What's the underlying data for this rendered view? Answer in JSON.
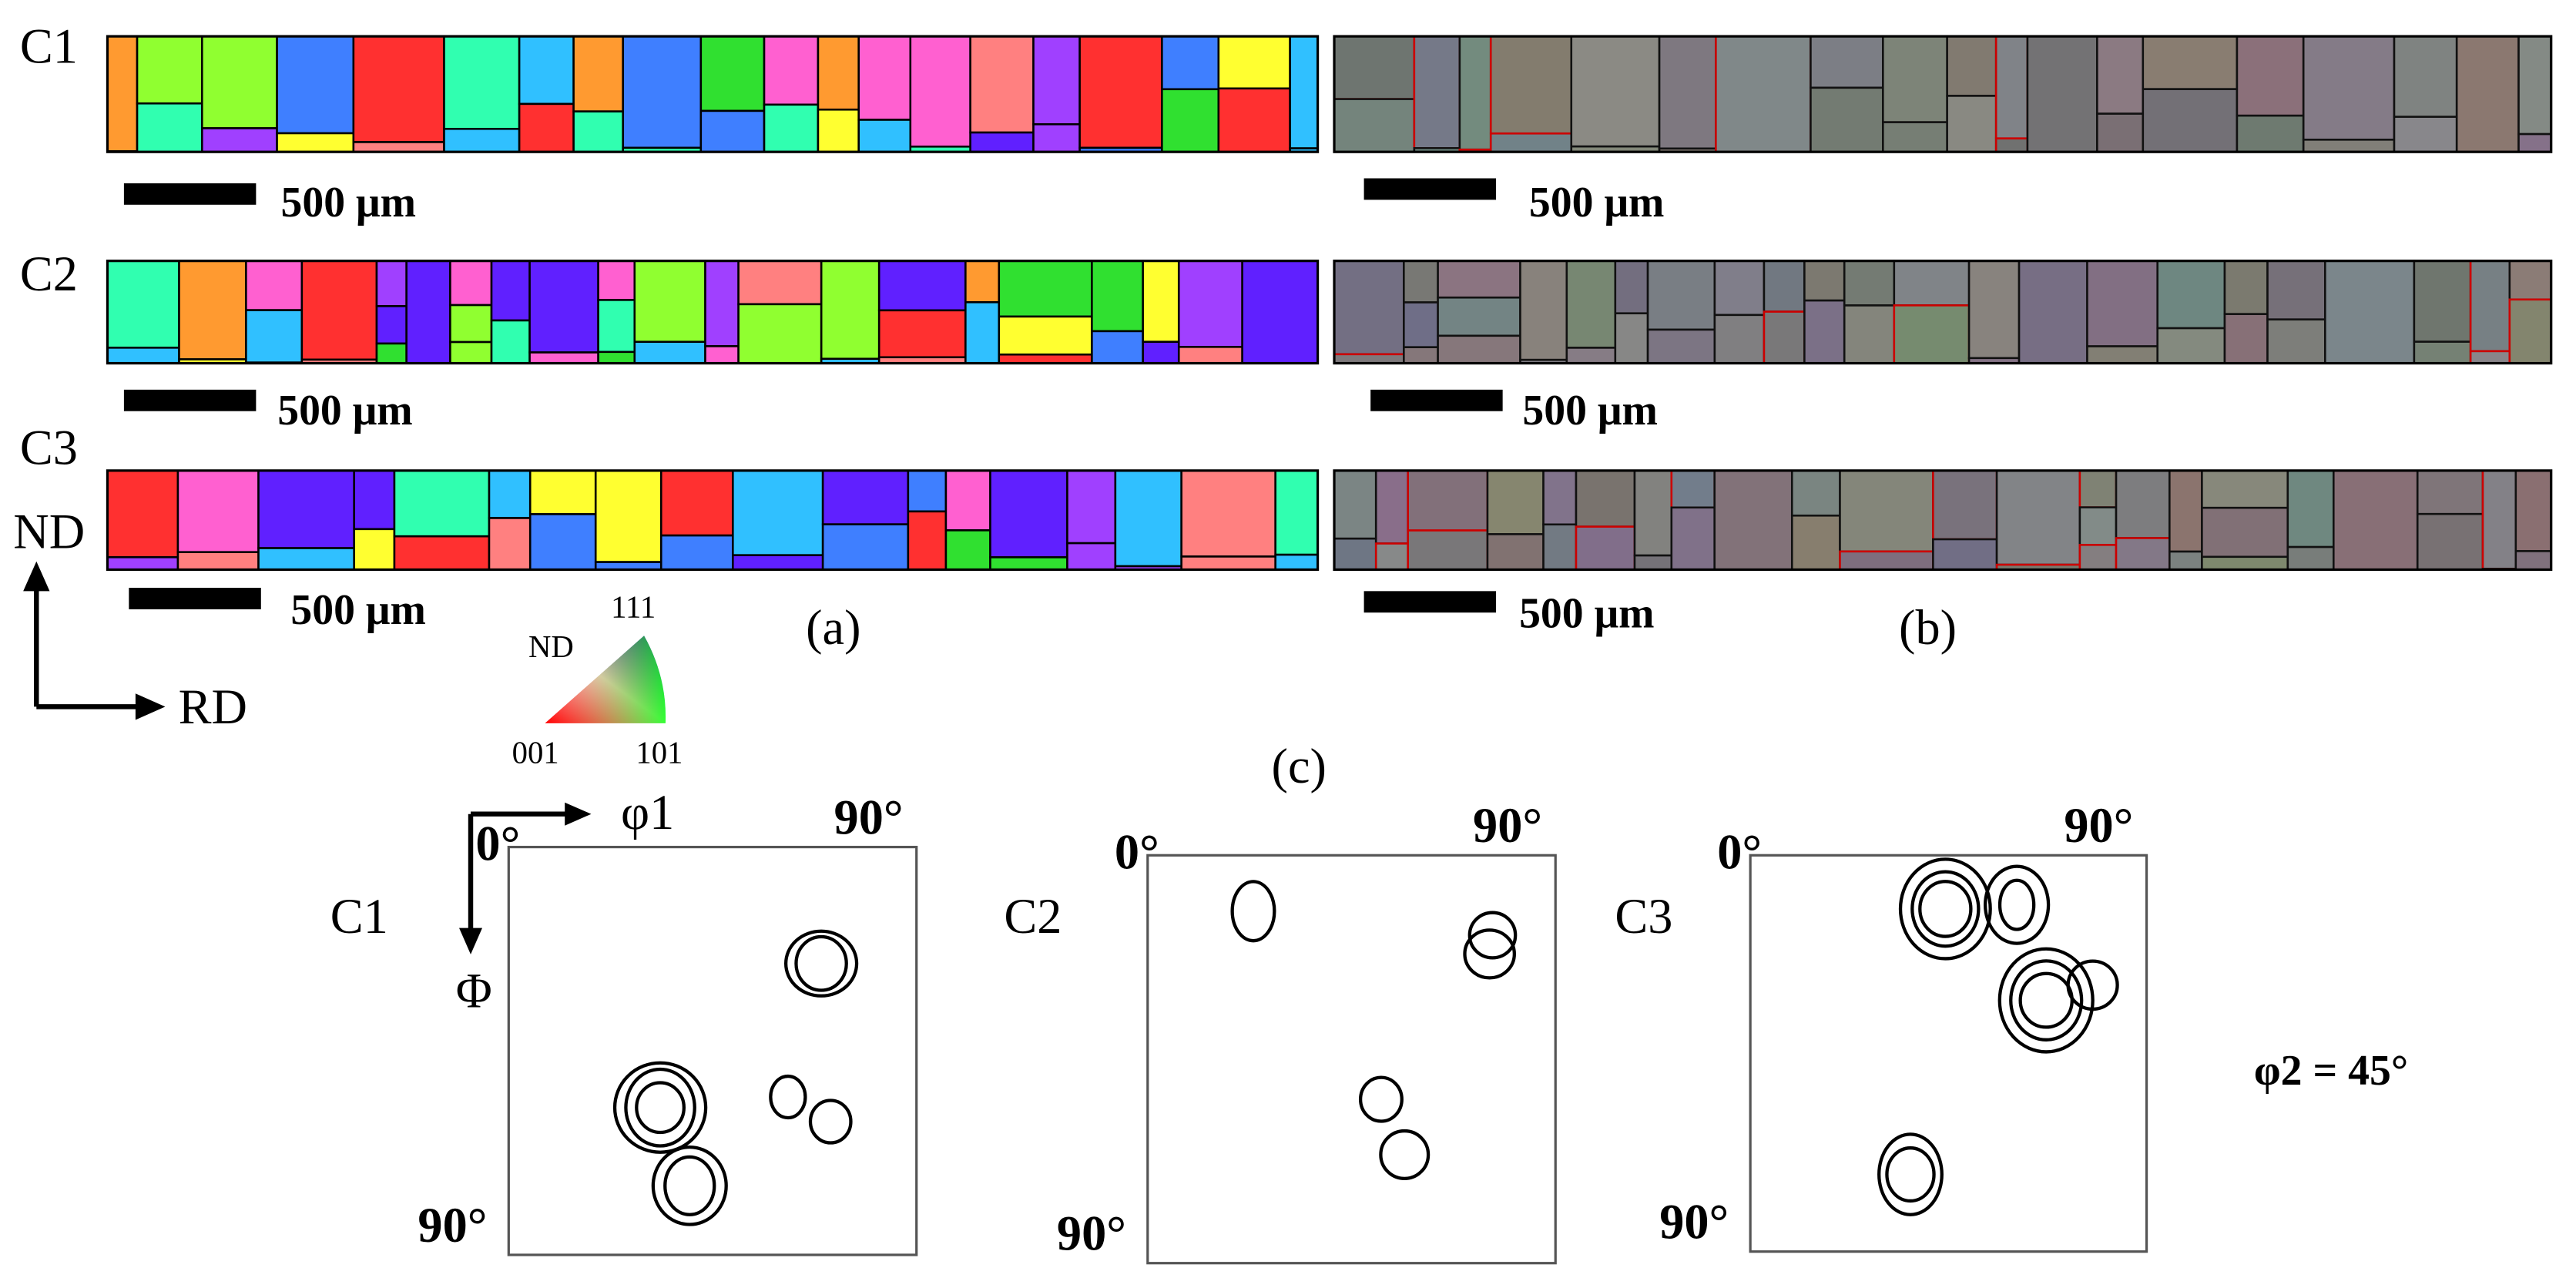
{
  "panel_a": {
    "label": "(a)",
    "rows": [
      {
        "name": "C1",
        "scale_bar": "500 μm"
      },
      {
        "name": "C2",
        "scale_bar": "500 μm"
      },
      {
        "name": "C3",
        "scale_bar": "500 μm"
      }
    ]
  },
  "panel_b": {
    "label": "(b)",
    "scale_bars": [
      "500 μm",
      "500 μm",
      "500 μm"
    ]
  },
  "sample_axes": {
    "nd": "ND",
    "rd": "RD"
  },
  "ipf_key": {
    "title": "ND",
    "corner_001": "001",
    "corner_101": "101",
    "corner_111": "111"
  },
  "panel_c": {
    "label": "(c)",
    "axis_phi1": "φ1",
    "axis_Phi": "Φ",
    "note": "φ2 = 45°",
    "sections": [
      {
        "name": "C1",
        "origin": "0°",
        "x_end": "90°",
        "y_end": "90°"
      },
      {
        "name": "C2",
        "origin": "0°",
        "x_end": "90°",
        "y_end": "90°"
      },
      {
        "name": "C3",
        "origin": "0°",
        "x_end": "90°",
        "y_end": "90°"
      }
    ]
  }
}
